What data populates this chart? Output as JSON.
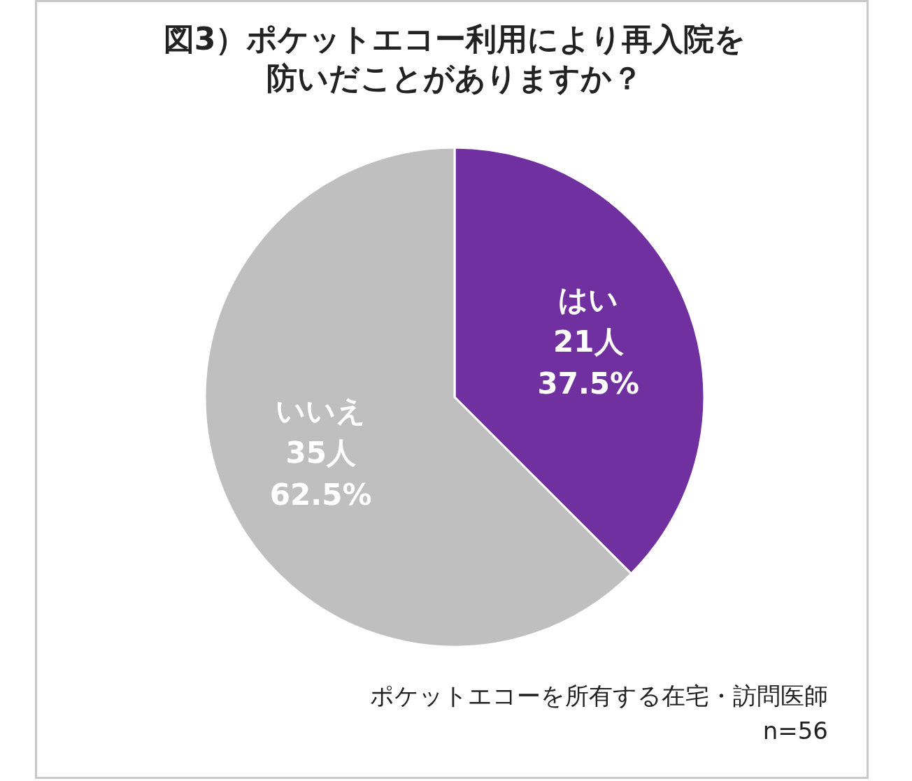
{
  "chart_data": {
    "type": "pie",
    "title": "図3）ポケットエコー利用により再入院を防いだことがありますか？",
    "categories": [
      "はい",
      "いいえ"
    ],
    "values": [
      21,
      35
    ],
    "value_labels": [
      "21人 37.5%",
      "35人 62.5%"
    ],
    "colors": [
      "#7030a0",
      "#bfbfbf"
    ],
    "annotations": [
      "ポケットエコーを所有する在宅・訪問医師",
      "n=56"
    ]
  }
}
